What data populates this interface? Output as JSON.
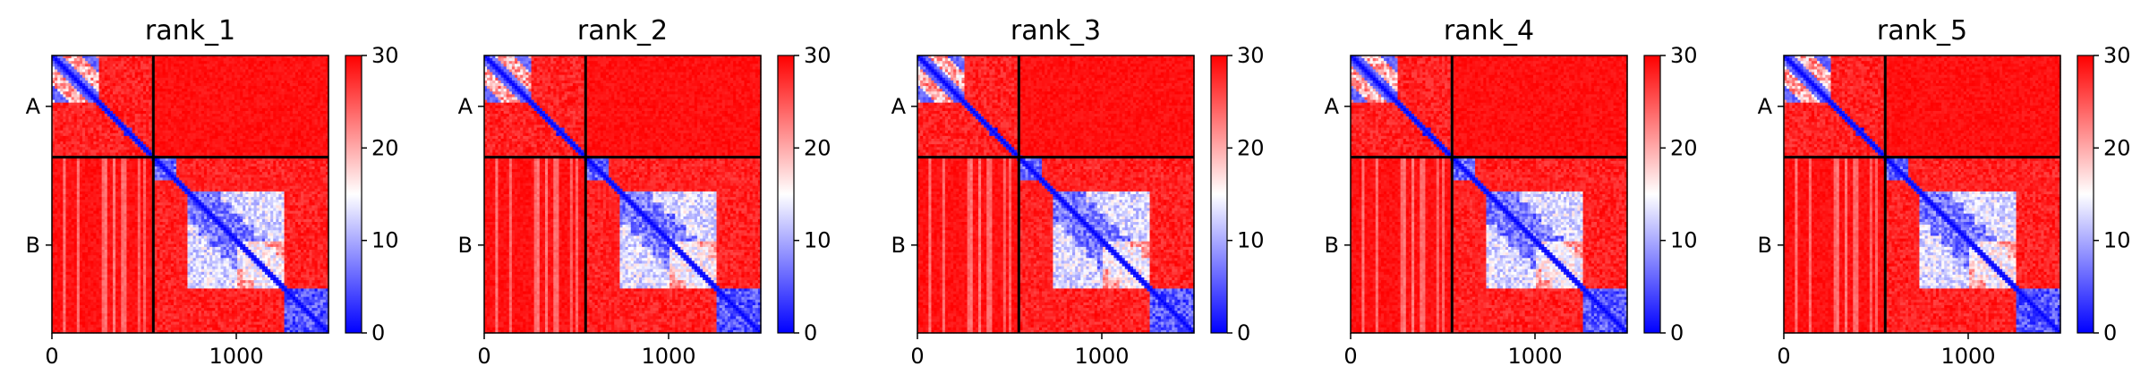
{
  "chart_data": {
    "type": "heatmap",
    "panel_titles": [
      "rank_1",
      "rank_2",
      "rank_3",
      "rank_4",
      "rank_5"
    ],
    "x_ticks": [
      0,
      1000
    ],
    "xlim": [
      0,
      1500
    ],
    "ylim": [
      0,
      1500
    ],
    "chain_labels": [
      "A",
      "B"
    ],
    "chain_boundary": 550,
    "chain_label_positions": [
      275,
      1025
    ],
    "colorbar": {
      "ticks": [
        0,
        10,
        20,
        30
      ],
      "range": [
        0,
        30
      ],
      "colors": [
        "#0000ff",
        "#ffffff",
        "#ff0000"
      ]
    },
    "domain_blocks": [
      {
        "start": 0,
        "end": 250,
        "mean": 10
      },
      {
        "start": 390,
        "end": 440,
        "mean": 2
      },
      {
        "start": 550,
        "end": 700,
        "mean": 6
      },
      {
        "start": 730,
        "end": 1260,
        "mean": 7
      },
      {
        "start": 1260,
        "end": 1500,
        "mean": 5
      }
    ],
    "linker_regions": [
      {
        "start": 680,
        "end": 730,
        "mean": 28
      }
    ],
    "interchain_mean": 29
  }
}
